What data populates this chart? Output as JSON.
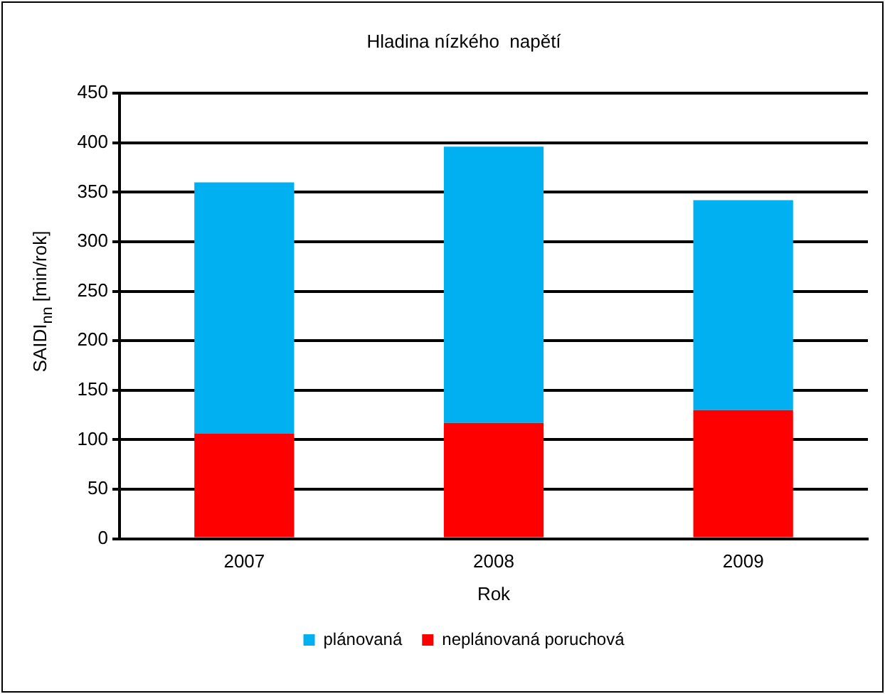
{
  "chart_data": {
    "type": "bar",
    "title": "Hladina nízkého  napětí",
    "xlabel": "Rok",
    "ylabel": "SAIDI$_{nn}$ [min/rok]",
    "categories": [
      "2007",
      "2008",
      "2009"
    ],
    "series": [
      {
        "name": "neplánovaná poruchová",
        "color": "#ff0000",
        "values": [
          106,
          117,
          130
        ]
      },
      {
        "name": "plánovaná",
        "color": "#00b0f0",
        "values": [
          254,
          279,
          212
        ]
      }
    ],
    "stacked": true,
    "ylim": [
      0,
      450
    ],
    "yticks": [
      0,
      50,
      100,
      150,
      200,
      250,
      300,
      350,
      400,
      450
    ],
    "grid": "y",
    "legend": "bottom"
  }
}
